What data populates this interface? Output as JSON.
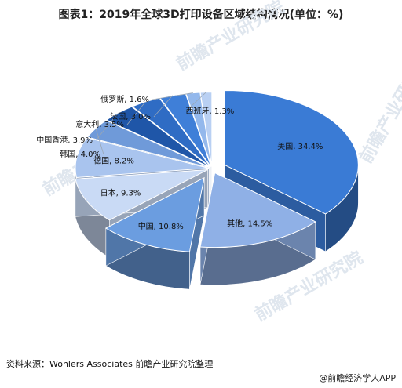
{
  "chart_data": {
    "type": "pie",
    "title": "图表1：2019年全球3D打印设备区域结构情况(单位：%)",
    "categories": [
      "美国",
      "其他",
      "中国",
      "日本",
      "德国",
      "韩国",
      "中国香港",
      "意大利",
      "法国",
      "俄罗斯",
      "西班牙"
    ],
    "values": [
      34.4,
      14.5,
      10.8,
      9.3,
      8.2,
      4.0,
      3.9,
      3.5,
      3.0,
      1.6,
      1.3
    ],
    "labels": [
      "美国, 34.4%",
      "其他, 14.5%",
      "中国, 10.8%",
      "日本, 9.3%",
      "德国, 8.2%",
      "韩国, 4.0%",
      "中国香港, 3.9%",
      "意大利, 3.5%",
      "法国, 3.0%",
      "俄罗斯, 1.6%",
      "西班牙, 1.3%"
    ],
    "colors": [
      "#3a7bd5",
      "#8fb0e6",
      "#6b9de0",
      "#c9daf5",
      "#a9c4ee",
      "#6f9ad9",
      "#1f56a8",
      "#2f6cc4",
      "#3f7fd8",
      "#93b8ec",
      "#b9d0f3"
    ]
  },
  "source": "资料来源：Wohlers Associates 前瞻产业研究院整理",
  "brand": "@前瞻经济学人APP",
  "watermark": "前瞻产业研究院"
}
